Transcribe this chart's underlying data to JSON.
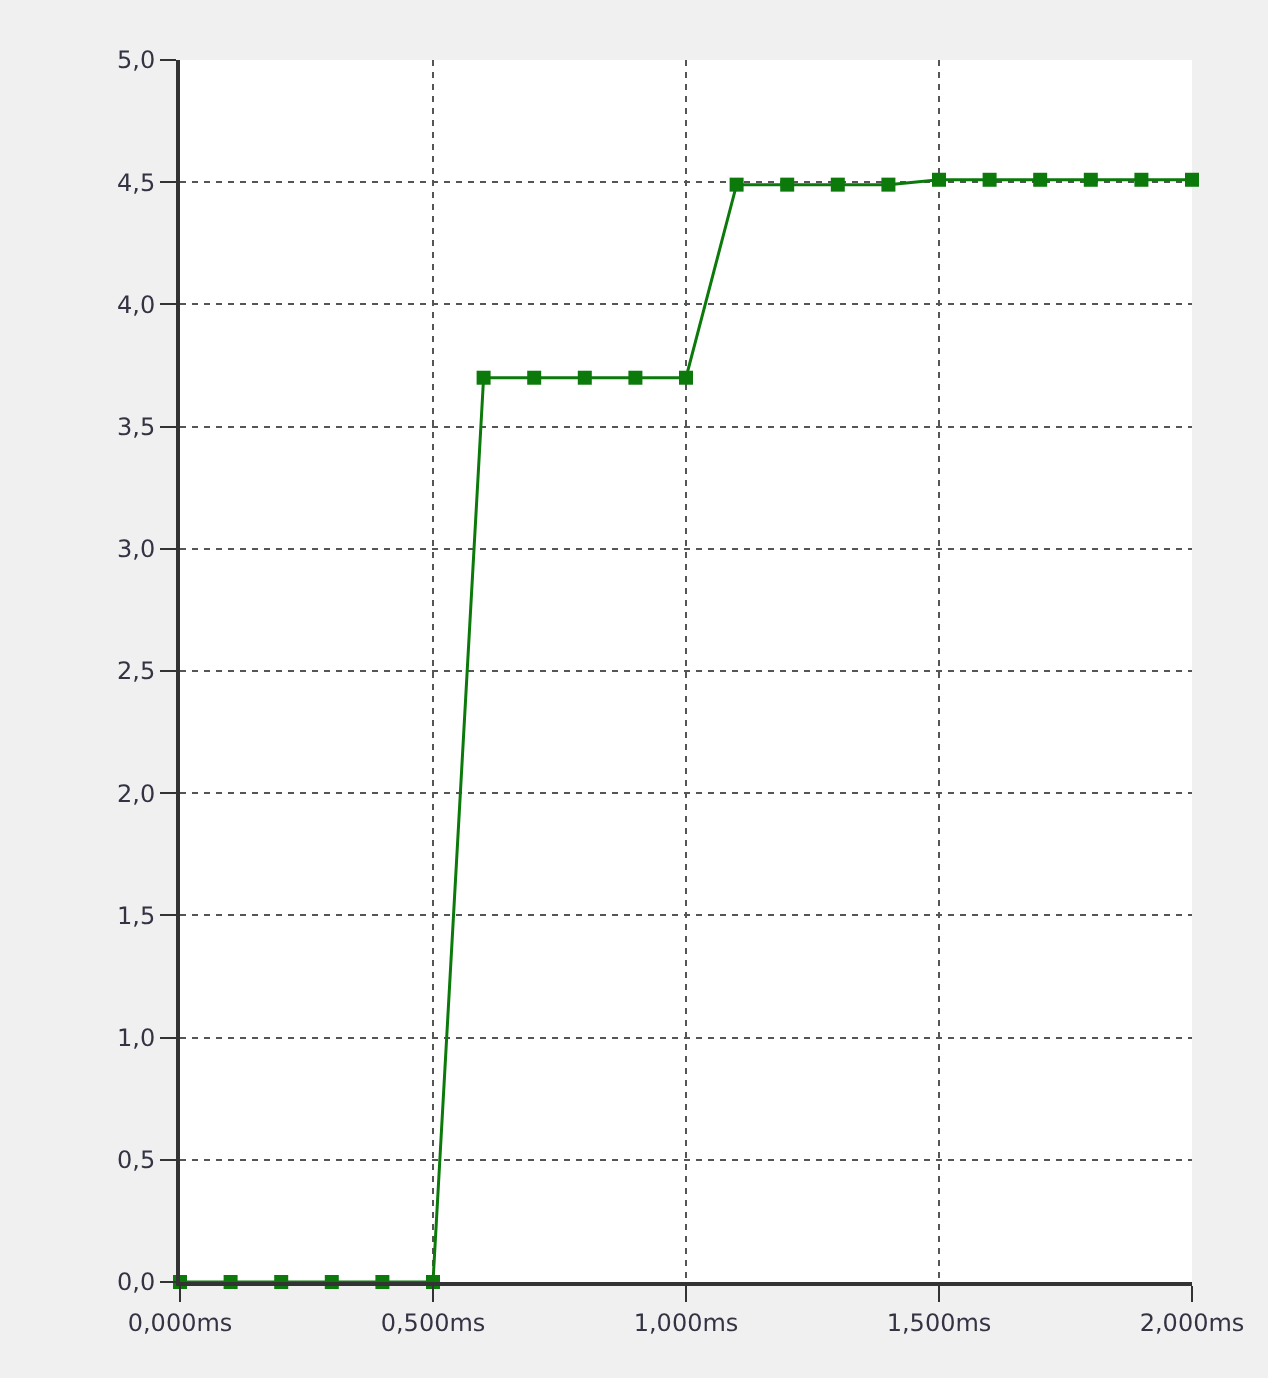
{
  "chart_data": {
    "type": "line",
    "x": [
      0.0,
      0.1,
      0.2,
      0.3,
      0.4,
      0.5,
      0.6,
      0.7,
      0.8,
      0.9,
      1.0,
      1.1,
      1.2,
      1.3,
      1.4,
      1.5,
      1.6,
      1.7,
      1.8,
      1.9,
      2.0
    ],
    "series": [
      {
        "color": "#0b7a0b",
        "values": [
          0.0,
          0.0,
          0.0,
          0.0,
          0.0,
          0.0,
          3.7,
          3.7,
          3.7,
          3.7,
          3.7,
          4.49,
          4.49,
          4.49,
          4.49,
          4.51,
          4.51,
          4.51,
          4.51,
          4.51,
          4.51
        ]
      }
    ],
    "xlim": [
      0,
      2.0
    ],
    "xticks": [
      {
        "value": 0,
        "label": "0,000ms"
      },
      {
        "value": 0.5,
        "label": "0,500ms"
      },
      {
        "value": 1.0,
        "label": "1,000ms"
      },
      {
        "value": 1.5,
        "label": "1,500ms"
      },
      {
        "value": 2.0,
        "label": "2,000ms"
      }
    ],
    "ylim": [
      0,
      5
    ],
    "yticks": [
      {
        "value": 0,
        "label": "0,0"
      },
      {
        "value": 0.5,
        "label": "0,5"
      },
      {
        "value": 1.0,
        "label": "1,0"
      },
      {
        "value": 1.5,
        "label": "1,5"
      },
      {
        "value": 2.0,
        "label": "2,0"
      },
      {
        "value": 2.5,
        "label": "2,5"
      },
      {
        "value": 3.0,
        "label": "3,0"
      },
      {
        "value": 3.5,
        "label": "3,5"
      },
      {
        "value": 4.0,
        "label": "4,0"
      },
      {
        "value": 4.5,
        "label": "4,5"
      },
      {
        "value": 5.0,
        "label": "5,0"
      }
    ],
    "grid": true,
    "marker": "square",
    "line_style": "solid"
  }
}
